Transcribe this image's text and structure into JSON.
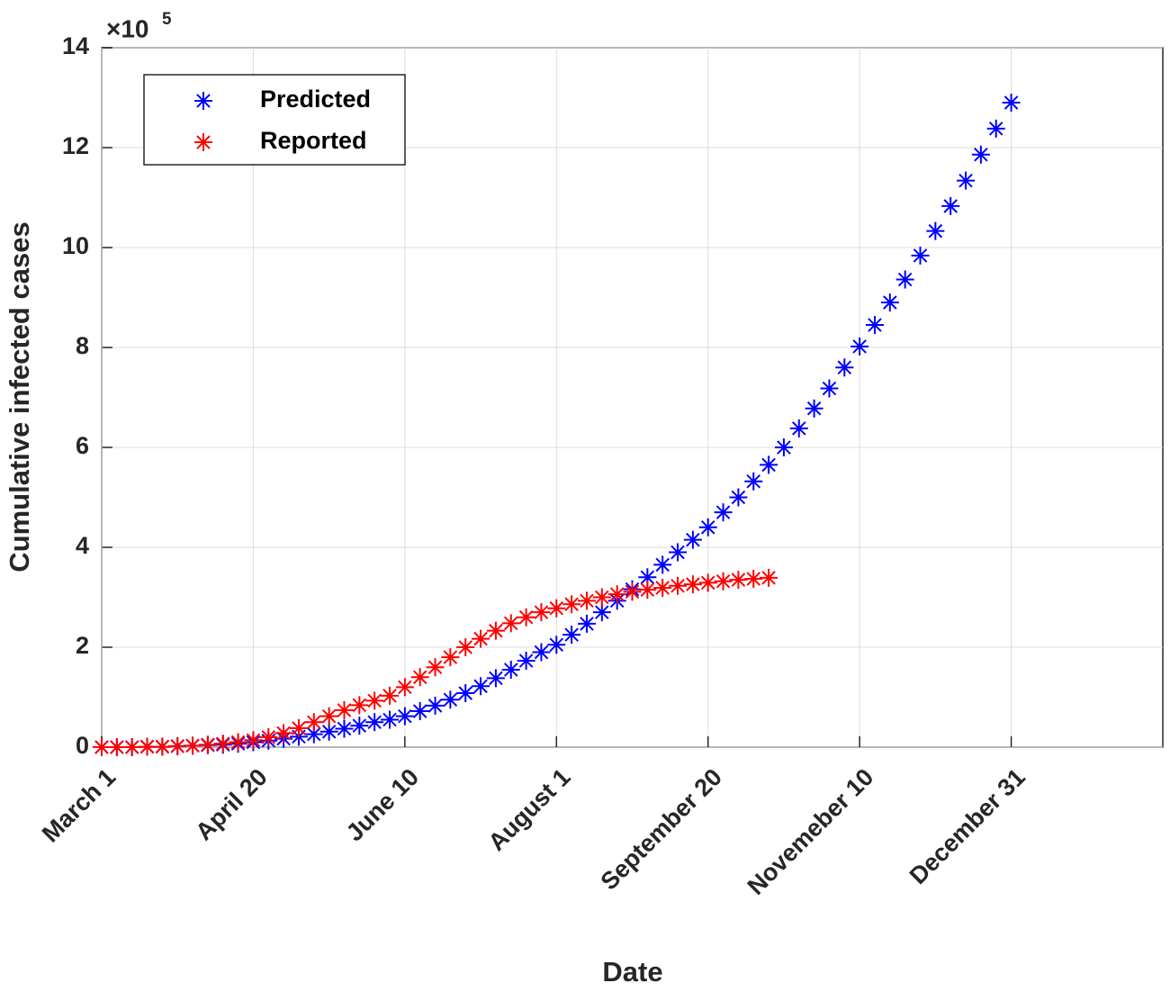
{
  "chart_data": {
    "type": "scatter",
    "marker": "asterisk",
    "x_label": "Date",
    "y_label": "Cumulative infected cases",
    "y_multiplier": {
      "base": "×10",
      "exponent": "5"
    },
    "xlim": [
      0,
      350
    ],
    "xticks": [
      {
        "value": 0,
        "label": "March 1"
      },
      {
        "value": 50,
        "label": "April 20"
      },
      {
        "value": 100,
        "label": "June 10"
      },
      {
        "value": 150,
        "label": "August 1"
      },
      {
        "value": 200,
        "label": "September 20"
      },
      {
        "value": 250,
        "label": "Novemeber 10"
      },
      {
        "value": 300,
        "label": "December 31"
      }
    ],
    "ylim": [
      0,
      14
    ],
    "yticks": [
      0,
      2,
      4,
      6,
      8,
      10,
      12,
      14
    ],
    "grid": true,
    "legend_position": "upper-left",
    "series": [
      {
        "name": "Predicted",
        "color": "#0000ff",
        "x": [
          0,
          5,
          10,
          15,
          20,
          25,
          30,
          35,
          40,
          45,
          50,
          55,
          60,
          65,
          70,
          75,
          80,
          85,
          90,
          95,
          100,
          105,
          110,
          115,
          120,
          125,
          130,
          135,
          140,
          145,
          150,
          155,
          160,
          165,
          170,
          175,
          180,
          185,
          190,
          195,
          200,
          205,
          210,
          215,
          220,
          225,
          230,
          235,
          240,
          245,
          250,
          255,
          260,
          265,
          270,
          275,
          280,
          285,
          290,
          295,
          300
        ],
        "values": [
          0,
          0,
          0,
          0.01,
          0.01,
          0.02,
          0.03,
          0.04,
          0.05,
          0.07,
          0.1,
          0.13,
          0.17,
          0.21,
          0.26,
          0.31,
          0.37,
          0.43,
          0.5,
          0.55,
          0.62,
          0.72,
          0.83,
          0.95,
          1.08,
          1.22,
          1.38,
          1.55,
          1.73,
          1.9,
          2.05,
          2.25,
          2.47,
          2.7,
          2.93,
          3.16,
          3.4,
          3.65,
          3.9,
          4.15,
          4.4,
          4.7,
          5.0,
          5.32,
          5.65,
          6.0,
          6.38,
          6.78,
          7.18,
          7.6,
          8.02,
          8.45,
          8.9,
          9.36,
          9.84,
          10.33,
          10.83,
          11.34,
          11.86,
          12.38,
          12.9
        ]
      },
      {
        "name": "Reported",
        "color": "#ff0000",
        "x": [
          0,
          5,
          10,
          15,
          20,
          25,
          30,
          35,
          40,
          45,
          50,
          55,
          60,
          65,
          70,
          75,
          80,
          85,
          90,
          95,
          100,
          105,
          110,
          115,
          120,
          125,
          130,
          135,
          140,
          145,
          150,
          155,
          160,
          165,
          170,
          175,
          180,
          185,
          190,
          195,
          200,
          205,
          210,
          215,
          220
        ],
        "values": [
          0,
          0,
          0,
          0.01,
          0.01,
          0.02,
          0.03,
          0.05,
          0.07,
          0.1,
          0.14,
          0.2,
          0.28,
          0.38,
          0.5,
          0.62,
          0.74,
          0.84,
          0.93,
          1.03,
          1.2,
          1.4,
          1.6,
          1.8,
          2.0,
          2.17,
          2.33,
          2.48,
          2.6,
          2.7,
          2.78,
          2.86,
          2.93,
          3.0,
          3.06,
          3.11,
          3.15,
          3.19,
          3.23,
          3.26,
          3.29,
          3.32,
          3.35,
          3.37,
          3.39
        ]
      }
    ]
  }
}
